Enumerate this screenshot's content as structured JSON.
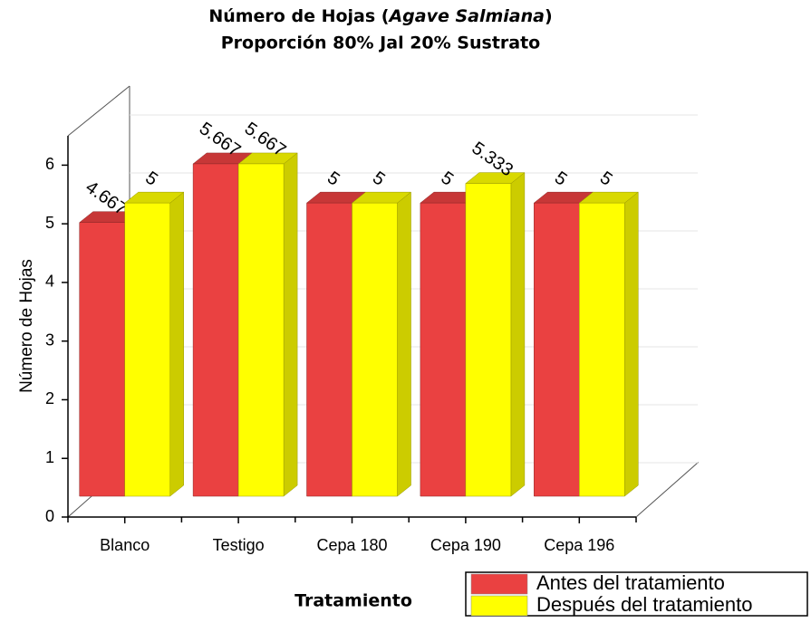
{
  "chart_data": {
    "type": "bar3d",
    "title": [
      "Número de Hojas (",
      "Agave Salmiana",
      ")"
    ],
    "subtitle": "Proporción 80% Jal 20% Sustrato",
    "x_label": "Tratamiento",
    "y_label": "Número de Hojas",
    "categories": [
      "Blanco",
      "Testigo",
      "Cepa 180",
      "Cepa 190",
      "Cepa 196"
    ],
    "series": [
      {
        "name": "Antes del tratamiento",
        "color": "#ea4141",
        "values": [
          4.667,
          5.667,
          5,
          5,
          5
        ]
      },
      {
        "name": "Después del tratamiento",
        "color": "#ffff00",
        "values": [
          5,
          5.667,
          5,
          5.333,
          5
        ]
      }
    ],
    "ylim": [
      0,
      6.5
    ],
    "yticks": [
      0,
      1,
      2,
      3,
      4,
      5,
      6
    ],
    "grid": true
  }
}
